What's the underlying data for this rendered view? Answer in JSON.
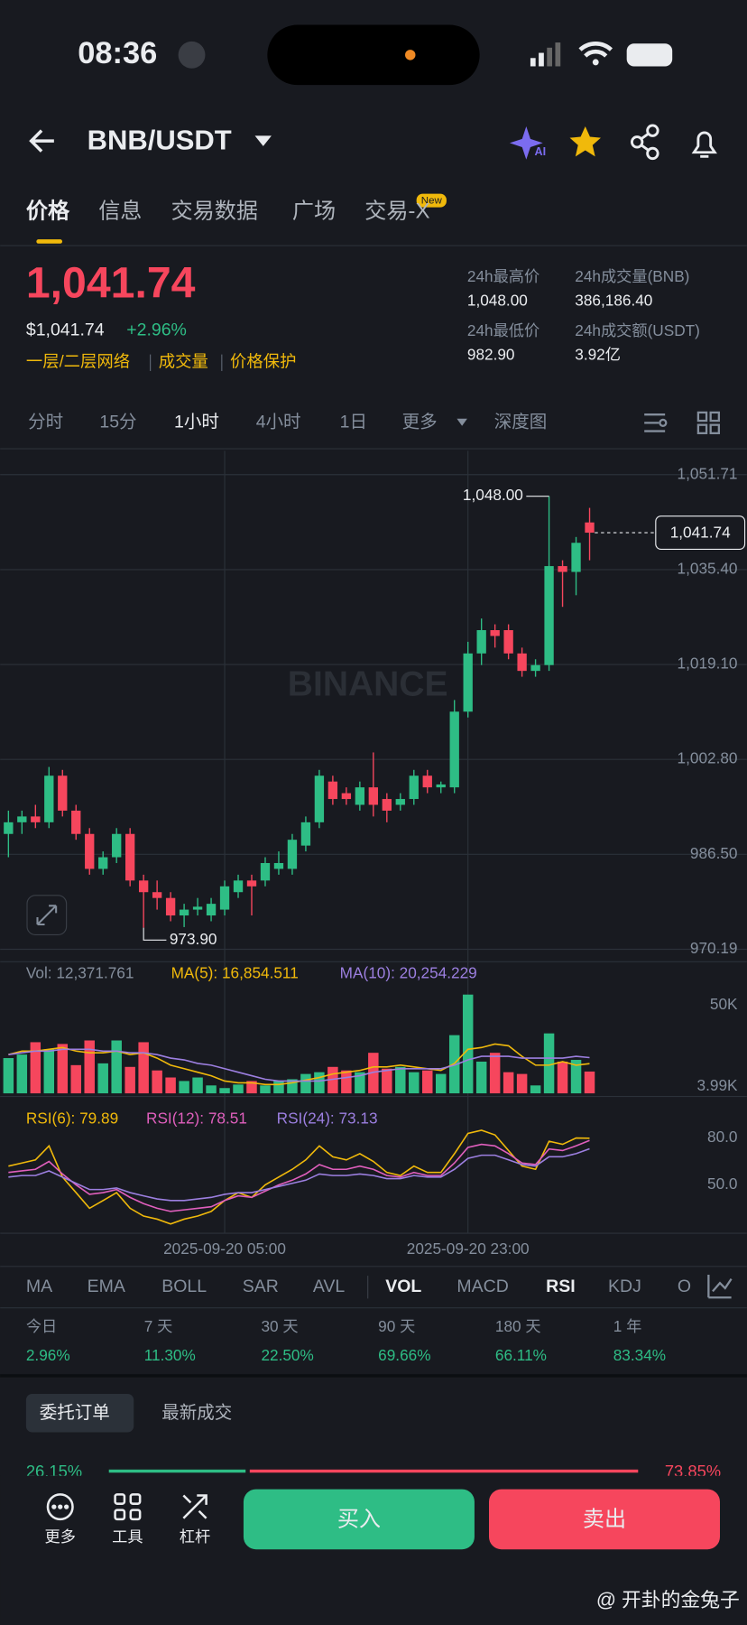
{
  "status": {
    "time": "08:36"
  },
  "header": {
    "pair": "BNB/USDT",
    "ai_badge": "AI"
  },
  "tabs": [
    "价格",
    "信息",
    "交易数据",
    "广场",
    "交易-X"
  ],
  "new_badge": "New",
  "price": {
    "last": "1,041.74",
    "usd": "$1,041.74",
    "change": "+2.96%",
    "tags": [
      "一层/二层网络",
      "成交量",
      "价格保护"
    ]
  },
  "stats": [
    {
      "label": "24h最高价",
      "value": "1,048.00"
    },
    {
      "label": "24h成交量(BNB)",
      "value": "386,186.40"
    },
    {
      "label": "24h最低价",
      "value": "982.90"
    },
    {
      "label": "24h成交额(USDT)",
      "value": "3.92亿"
    }
  ],
  "intervals": [
    "分时",
    "15分",
    "1小时",
    "4小时",
    "1日",
    "更多",
    "深度图"
  ],
  "chart_data": [
    {
      "type": "candlestick",
      "watermark": "BINANCE",
      "categories": [
        null,
        null,
        null,
        null,
        null,
        null,
        null,
        null,
        null,
        null,
        null,
        null,
        null,
        null,
        null,
        null,
        "2025-09-20 05:00",
        null,
        null,
        null,
        null,
        null,
        null,
        null,
        null,
        null,
        null,
        null,
        null,
        null,
        null,
        null,
        null,
        null,
        "2025-09-20 23:00",
        null,
        null,
        null,
        null,
        null,
        null,
        null,
        null,
        null
      ],
      "open": [
        990,
        992,
        993,
        992,
        1000,
        994,
        990,
        984,
        986,
        990,
        982,
        980,
        979,
        976,
        977,
        976,
        977,
        980,
        982,
        982,
        984,
        984,
        988,
        992,
        999,
        997,
        995,
        998,
        996,
        995,
        996,
        1000,
        998,
        998,
        1011,
        1021,
        1025,
        1025,
        1021,
        1018,
        1019,
        1036,
        1035,
        1043.5
      ],
      "high": [
        994,
        994,
        995,
        1001.5,
        1001,
        995,
        991,
        987,
        991,
        991,
        983,
        982,
        980,
        978,
        979,
        979,
        982,
        983,
        983,
        986,
        987,
        990,
        993,
        1001,
        1000,
        998,
        999,
        1004,
        997,
        997,
        1001,
        1001,
        999,
        1013,
        1023,
        1027,
        1026,
        1026,
        1022,
        1020,
        1048,
        1037,
        1041,
        1046
      ],
      "low": [
        986,
        990,
        991,
        991,
        993,
        989,
        983,
        983,
        985,
        981,
        973.9,
        977,
        975,
        974,
        976,
        975,
        976,
        979,
        976,
        981,
        983,
        983,
        987,
        991,
        995,
        995,
        994,
        993,
        992,
        994,
        995,
        997,
        997,
        997,
        1010,
        1019,
        1022,
        1020,
        1017,
        1017,
        1018,
        1029,
        1031,
        1037
      ],
      "close": [
        992,
        993,
        992,
        1000,
        994,
        990,
        984,
        986,
        990,
        982,
        980,
        979,
        976,
        977,
        977.5,
        978,
        981,
        982,
        981,
        985,
        985,
        989,
        992,
        1000,
        996,
        996,
        998,
        995,
        994,
        996,
        1000,
        998,
        998.5,
        1011,
        1021,
        1025,
        1024,
        1021,
        1018,
        1019,
        1036,
        1035,
        1040,
        1041.74
      ],
      "up_color": "#2ebd85",
      "down_color": "#f6465d",
      "ylim": [
        968.05,
        1055.8
      ],
      "yticks": [
        {
          "value": 1051.71,
          "label": "1,051.71"
        },
        {
          "value": 1035.4,
          "label": "1,035.40"
        },
        {
          "value": 1019.1,
          "label": "1,019.10"
        },
        {
          "value": 1002.8,
          "label": "1,002.80"
        },
        {
          "value": 986.5,
          "label": "986.50"
        },
        970.19
      ],
      "grid": true,
      "last_label": "1,041.74",
      "max_label": "1,048.00",
      "min_label": "973.90"
    },
    {
      "type": "bar",
      "values": [
        20000,
        22000,
        29000,
        25000,
        28000,
        16000,
        30000,
        17000,
        30000,
        15000,
        29000,
        13000,
        9000,
        7000,
        9000,
        4500,
        3000,
        5000,
        7000,
        4500,
        7000,
        8000,
        11000,
        12000,
        15000,
        13000,
        12000,
        23000,
        14000,
        15000,
        12000,
        13000,
        11000,
        33000,
        56000,
        18000,
        23000,
        12000,
        11000,
        4500,
        34000,
        18000,
        19000,
        12371.761
      ],
      "series": [
        {
          "color": "#f0b90b",
          "values": [
            22000,
            24000,
            24000,
            25000,
            26000,
            24000,
            23000,
            23000,
            24000,
            22000,
            23000,
            20000,
            16000,
            14000,
            12000,
            10000,
            7000,
            6000,
            6000,
            5000,
            5000,
            6000,
            7500,
            9000,
            11000,
            12000,
            13000,
            15000,
            15000,
            16000,
            15000,
            14000,
            13000,
            17000,
            25000,
            26000,
            28000,
            27000,
            21000,
            16000,
            16000,
            18000,
            16000,
            16854.511
          ]
        },
        {
          "color": "#9c7fe0",
          "values": [
            22000,
            23000,
            24000,
            24000,
            25000,
            25000,
            25000,
            24000,
            24000,
            23000,
            23000,
            22000,
            20000,
            19000,
            17000,
            16000,
            14000,
            12000,
            10000,
            8000,
            7000,
            7000,
            7000,
            7000,
            8000,
            9000,
            10000,
            12000,
            13000,
            14000,
            14000,
            14000,
            14000,
            16000,
            19000,
            21000,
            21000,
            21000,
            20000,
            20000,
            20000,
            20000,
            21000,
            20254.229
          ]
        }
      ],
      "legend": [
        {
          "text": "Vol: 12,371.761",
          "color": "#848e9c"
        },
        {
          "text": "MA(5): 16,854.511",
          "color": "#f0b90b"
        },
        {
          "text": "MA(10): 20,254.229",
          "color": "#9c7fe0"
        }
      ],
      "ylim": [
        0,
        57000
      ],
      "yticks": [
        {
          "value": 50000,
          "label": "50K"
        },
        {
          "value": 3990,
          "label": "3.99K"
        }
      ],
      "grid": false
    },
    {
      "type": "line",
      "series": [
        {
          "color": "#f0b90b",
          "values": [
            62,
            64,
            66,
            75,
            55,
            45,
            35,
            40,
            45,
            35,
            30,
            28,
            25,
            28,
            30,
            33,
            40,
            45,
            42,
            50,
            55,
            60,
            66,
            75,
            68,
            66,
            70,
            65,
            58,
            56,
            62,
            58,
            58,
            70,
            83,
            85,
            82,
            72,
            62,
            60,
            78,
            76,
            80,
            79.89
          ]
        },
        {
          "color": "#e05fbd",
          "values": [
            58,
            59,
            60,
            65,
            57,
            50,
            44,
            45,
            47,
            42,
            38,
            35,
            33,
            34,
            35,
            36,
            40,
            43,
            42,
            46,
            50,
            53,
            57,
            63,
            60,
            60,
            62,
            60,
            56,
            55,
            58,
            56,
            56,
            64,
            74,
            76,
            75,
            70,
            64,
            63,
            73,
            72,
            75,
            78.51
          ]
        },
        {
          "color": "#9c7fe0",
          "values": [
            55,
            56,
            56,
            59,
            55,
            51,
            47,
            47,
            48,
            45,
            43,
            41,
            40,
            40,
            41,
            42,
            44,
            45,
            45,
            47,
            49,
            51,
            53,
            57,
            56,
            56,
            57,
            56,
            54,
            54,
            56,
            55,
            55,
            60,
            67,
            69,
            69,
            66,
            63,
            62,
            68,
            68,
            70,
            73.13
          ]
        }
      ],
      "legend": [
        {
          "text": "RSI(6): 79.89",
          "color": "#f0b90b"
        },
        {
          "text": "RSI(12): 78.51",
          "color": "#e05fbd"
        },
        {
          "text": "RSI(24): 73.13",
          "color": "#9c7fe0"
        }
      ],
      "ylim": [
        19,
        104
      ],
      "yticks": [
        {
          "value": 80,
          "label": "80.0"
        },
        {
          "value": 50,
          "label": "50.0"
        }
      ],
      "grid": false
    }
  ],
  "indicators": [
    "MA",
    "EMA",
    "BOLL",
    "SAR",
    "AVL",
    "VOL",
    "MACD",
    "RSI",
    "KDJ",
    "O"
  ],
  "performance": [
    {
      "period": "今日",
      "value": "2.96%"
    },
    {
      "period": "7 天",
      "value": "11.30%"
    },
    {
      "period": "30 天",
      "value": "22.50%"
    },
    {
      "period": "90 天",
      "value": "69.66%"
    },
    {
      "period": "180 天",
      "value": "66.11%"
    },
    {
      "period": "1 年",
      "value": "83.34%"
    }
  ],
  "order_tabs": [
    "委托订单",
    "最新成交"
  ],
  "order_ratio": {
    "buy": "26.15%",
    "sell": "73.85%"
  },
  "bottom": {
    "actions": [
      "更多",
      "工具",
      "杠杆"
    ],
    "buy": "买入",
    "sell": "卖出"
  },
  "watermark": "@ 开卦的金兔子"
}
